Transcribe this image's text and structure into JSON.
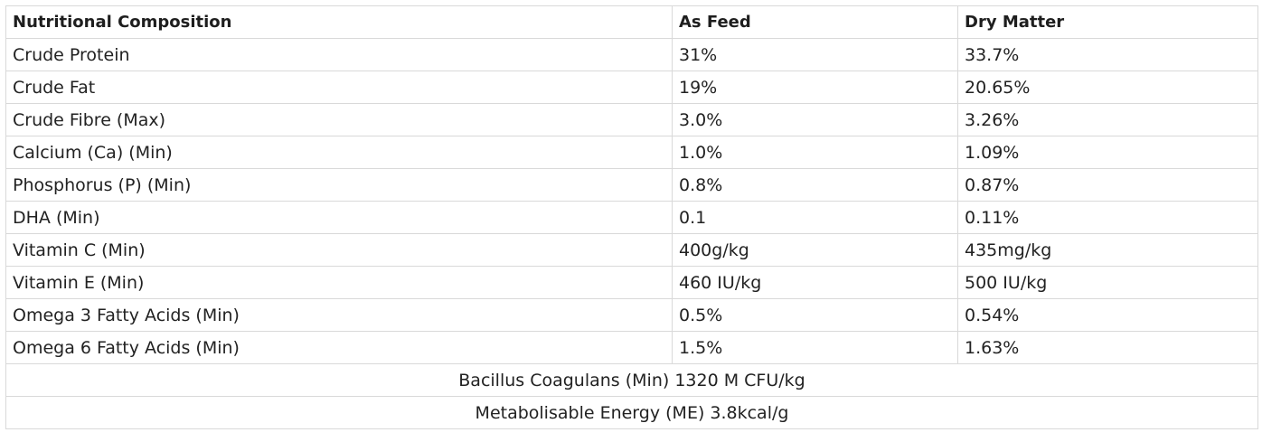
{
  "table": {
    "headers": [
      "Nutritional Composition",
      "As Feed",
      "Dry Matter"
    ],
    "rows": [
      [
        "Crude Protein",
        "31%",
        "33.7%"
      ],
      [
        "Crude Fat",
        "19%",
        "20.65%"
      ],
      [
        "Crude Fibre (Max)",
        "3.0%",
        "3.26%"
      ],
      [
        "Calcium (Ca) (Min)",
        "1.0%",
        "1.09%"
      ],
      [
        "Phosphorus (P) (Min)",
        "0.8%",
        "0.87%"
      ],
      [
        "DHA (Min)",
        "0.1",
        "0.11%"
      ],
      [
        "Vitamin C (Min)",
        "400g/kg",
        "435mg/kg"
      ],
      [
        "Vitamin E (Min)",
        "460 IU/kg",
        "500 IU/kg"
      ],
      [
        "Omega 3 Fatty Acids (Min)",
        "0.5%",
        "0.54%"
      ],
      [
        "Omega 6 Fatty Acids (Min)",
        "1.5%",
        "1.63%"
      ]
    ],
    "footer_rows": [
      "Bacillus Coagulans (Min) 1320 M CFU/kg",
      "Metabolisable Energy (ME) 3.8kcal/g"
    ]
  },
  "colors": {
    "border": "#d9d9d9",
    "text": "#222222",
    "background": "#ffffff"
  }
}
